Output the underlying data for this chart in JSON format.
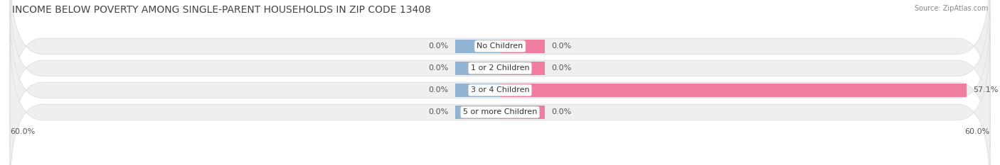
{
  "title": "INCOME BELOW POVERTY AMONG SINGLE-PARENT HOUSEHOLDS IN ZIP CODE 13408",
  "source": "Source: ZipAtlas.com",
  "categories": [
    "No Children",
    "1 or 2 Children",
    "3 or 4 Children",
    "5 or more Children"
  ],
  "single_father": [
    0.0,
    0.0,
    0.0,
    0.0
  ],
  "single_mother": [
    0.0,
    0.0,
    57.1,
    0.0
  ],
  "xlim": [
    -60.0,
    60.0
  ],
  "father_color": "#92B4D4",
  "mother_color": "#F07CA0",
  "bg_bar_color": "#EFEFEF",
  "bar_bg_edge_color": "#DDDDDD",
  "title_fontsize": 10,
  "label_fontsize": 8,
  "tick_fontsize": 8,
  "legend_fontsize": 8,
  "source_fontsize": 7,
  "bar_height": 0.62,
  "stub_size": 5.5,
  "figure_bg": "#FFFFFF",
  "axes_bg": "#FFFFFF"
}
